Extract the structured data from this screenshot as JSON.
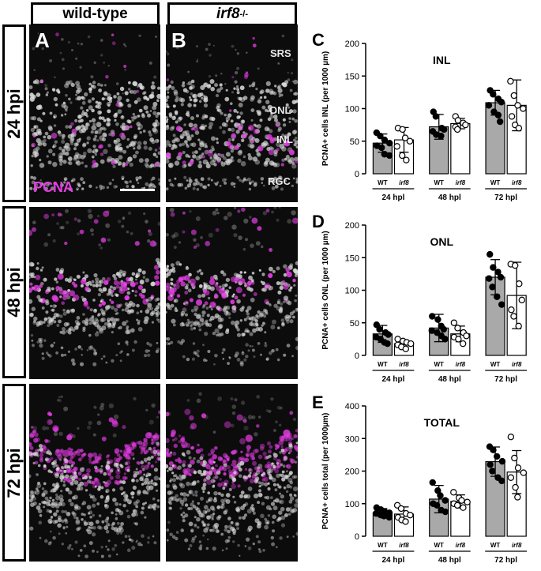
{
  "figure": {
    "column_headers": [
      "wild-type",
      "irf8"
    ],
    "column_header_superscript": "-/-",
    "row_headers": [
      "24 hpi",
      "48 hpi",
      "72 hpi"
    ],
    "panel_letters": [
      "A",
      "B"
    ],
    "layer_labels": {
      "srs": "SRS",
      "onl": "ONL",
      "inl": "INL",
      "rgc": "RGC"
    },
    "stain_label": "PCNA",
    "colors": {
      "pcna": "#e43ce4",
      "nuclei": "#d8d8d8",
      "background": "#0c0c0c"
    }
  },
  "chart_data": [
    {
      "type": "bar",
      "letter": "C",
      "title": "INL",
      "ylabel": "PCNA+ cells INL  (per 1000 µm)",
      "ylim": [
        0,
        200
      ],
      "yticks": [
        0,
        50,
        100,
        150,
        200
      ],
      "categories": [
        "WT",
        "irf8",
        "WT",
        "irf8",
        "WT",
        "irf8"
      ],
      "groups": [
        "24 hpl",
        "48 hpl",
        "72 hpl"
      ],
      "fills": [
        "#a9a9a9",
        "#ffffff",
        "#a9a9a9",
        "#ffffff",
        "#a9a9a9",
        "#ffffff"
      ],
      "values": [
        47,
        52,
        72,
        77,
        109,
        105
      ],
      "sd": [
        14,
        19,
        19,
        8,
        19,
        39
      ],
      "points": [
        [
          63,
          58,
          52,
          47,
          43,
          40,
          30,
          28
        ],
        [
          70,
          68,
          55,
          50,
          42,
          28,
          21
        ],
        [
          95,
          88,
          70,
          68,
          65,
          60,
          58
        ],
        [
          88,
          82,
          78,
          75,
          72,
          68
        ],
        [
          128,
          122,
          115,
          110,
          105,
          95,
          90,
          80
        ],
        [
          142,
          120,
          105,
          100,
          88,
          75,
          70
        ]
      ]
    },
    {
      "type": "bar",
      "letter": "D",
      "title": "ONL",
      "ylabel": "PCNA+ cells ONL  (per 1000 µm)",
      "ylim": [
        0,
        200
      ],
      "yticks": [
        0,
        50,
        100,
        150,
        200
      ],
      "categories": [
        "WT",
        "irf8",
        "WT",
        "irf8",
        "WT",
        "irf8"
      ],
      "groups": [
        "24 hpl",
        "48 hpl",
        "72 hpl"
      ],
      "fills": [
        "#a9a9a9",
        "#ffffff",
        "#a9a9a9",
        "#ffffff",
        "#a9a9a9",
        "#ffffff"
      ],
      "values": [
        33,
        18,
        42,
        33,
        120,
        92
      ],
      "sd": [
        13,
        5,
        21,
        12,
        27,
        51
      ],
      "points": [
        [
          47,
          40,
          35,
          32,
          28,
          25,
          20,
          18
        ],
        [
          25,
          22,
          20,
          18,
          16,
          13,
          10
        ],
        [
          60,
          55,
          45,
          40,
          38,
          35,
          30,
          25
        ],
        [
          50,
          42,
          35,
          30,
          28,
          25,
          18
        ],
        [
          155,
          135,
          128,
          120,
          118,
          105,
          90,
          78
        ],
        [
          140,
          138,
          110,
          85,
          70,
          60,
          45
        ]
      ]
    },
    {
      "type": "bar",
      "letter": "E",
      "title": "TOTAL",
      "ylabel": "PCNA+ cells total  (per 1000µm)",
      "ylim": [
        0,
        400
      ],
      "yticks": [
        0,
        100,
        200,
        300,
        400
      ],
      "categories": [
        "WT",
        "irf8",
        "WT",
        "irf8",
        "WT",
        "irf8"
      ],
      "groups": [
        "24 hpl",
        "48 hpl",
        "72 hpl"
      ],
      "fills": [
        "#a9a9a9",
        "#ffffff",
        "#a9a9a9",
        "#ffffff",
        "#a9a9a9",
        "#ffffff"
      ],
      "values": [
        72,
        68,
        114,
        107,
        229,
        197
      ],
      "sd": [
        13,
        22,
        42,
        20,
        45,
        66
      ],
      "points": [
        [
          88,
          82,
          75,
          72,
          70,
          65,
          62,
          58
        ],
        [
          95,
          85,
          70,
          65,
          58,
          50,
          45
        ],
        [
          165,
          140,
          125,
          110,
          100,
          95,
          80,
          75
        ],
        [
          135,
          118,
          110,
          105,
          100,
          95,
          88
        ],
        [
          275,
          265,
          245,
          230,
          220,
          200,
          180,
          170
        ],
        [
          305,
          240,
          210,
          195,
          180,
          150,
          120
        ]
      ]
    }
  ]
}
